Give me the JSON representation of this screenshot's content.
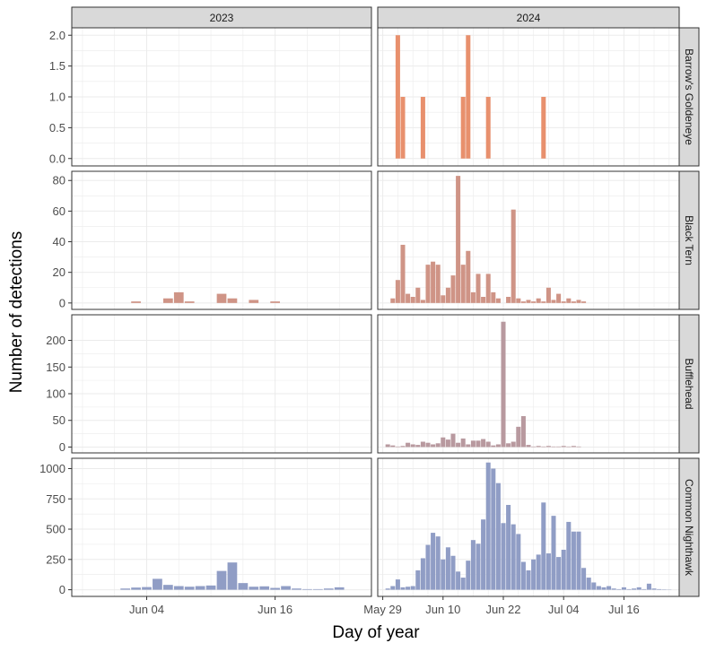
{
  "chart_data": {
    "type": "bar",
    "layout": "facet grid: rows = species, columns = year",
    "xlabel": "Day of year",
    "ylabel": "Number of detections",
    "grid": true,
    "legend": "none",
    "columns": [
      "2023",
      "2024"
    ],
    "rows": [
      "Barrow's Goldeneye",
      "Black Tern",
      "Bufflehead",
      "Common Nighthawk"
    ],
    "colors": {
      "Barrow's Goldeneye": "#E8906D",
      "Black Tern": "#CF9486",
      "Bufflehead": "#B8999F",
      "Common Nighthawk": "#909DC5",
      "strip_fill": "#D9D9D9",
      "grid": "#EBEBEB"
    },
    "panels": [
      {
        "year": "2023",
        "x_range": [
          "2023-05-28",
          "2023-06-25"
        ],
        "x_ticks": [
          {
            "date": "2023-06-04",
            "label": "Jun 04"
          },
          {
            "date": "2023-06-16",
            "label": "Jun 16"
          }
        ]
      },
      {
        "year": "2024",
        "x_range": [
          "2024-05-28",
          "2024-07-27"
        ],
        "x_ticks": [
          {
            "date": "2024-05-29",
            "label": "May 29"
          },
          {
            "date": "2024-06-10",
            "label": "Jun 10"
          },
          {
            "date": "2024-06-22",
            "label": "Jun 22"
          },
          {
            "date": "2024-07-04",
            "label": "Jul 04"
          },
          {
            "date": "2024-07-16",
            "label": "Jul 16"
          }
        ]
      }
    ],
    "y_axes": [
      {
        "species": "Barrow's Goldeneye",
        "ylim": [
          -0.12,
          2.12
        ],
        "ticks": [
          0.0,
          0.5,
          1.0,
          1.5,
          2.0
        ],
        "tick_labels": [
          "0.0",
          "0.5",
          "1.0",
          "1.5",
          "2.0"
        ]
      },
      {
        "species": "Black Tern",
        "ylim": [
          -4.2,
          86
        ],
        "ticks": [
          0,
          20,
          40,
          60,
          80
        ],
        "tick_labels": [
          "0",
          "20",
          "40",
          "60",
          "80"
        ]
      },
      {
        "species": "Bufflehead",
        "ylim": [
          -11,
          248
        ],
        "ticks": [
          0,
          50,
          100,
          150,
          200
        ],
        "tick_labels": [
          "0",
          "50",
          "100",
          "150",
          "200"
        ]
      },
      {
        "species": "Common Nighthawk",
        "ylim": [
          -55,
          1085
        ],
        "ticks": [
          0,
          250,
          500,
          750,
          1000
        ],
        "tick_labels": [
          "0",
          "250",
          "500",
          "750",
          "1000"
        ]
      }
    ],
    "series": [
      {
        "species": "Barrow's Goldeneye",
        "year": "2023",
        "dates": [],
        "values": []
      },
      {
        "species": "Barrow's Goldeneye",
        "year": "2024",
        "dates": [
          "2024-06-01",
          "2024-06-02",
          "2024-06-06",
          "2024-06-14",
          "2024-06-15",
          "2024-06-19",
          "2024-06-30"
        ],
        "values": [
          2,
          1,
          1,
          1,
          2,
          1,
          1
        ]
      },
      {
        "species": "Black Tern",
        "year": "2023",
        "dates": [
          "2023-06-03",
          "2023-06-06",
          "2023-06-07",
          "2023-06-08",
          "2023-06-11",
          "2023-06-12",
          "2023-06-14",
          "2023-06-16"
        ],
        "values": [
          1,
          3,
          7,
          1,
          6,
          3,
          2,
          1
        ]
      },
      {
        "species": "Black Tern",
        "year": "2024",
        "dates": [
          "2024-05-31",
          "2024-06-01",
          "2024-06-02",
          "2024-06-03",
          "2024-06-04",
          "2024-06-05",
          "2024-06-06",
          "2024-06-07",
          "2024-06-08",
          "2024-06-09",
          "2024-06-10",
          "2024-06-11",
          "2024-06-12",
          "2024-06-13",
          "2024-06-14",
          "2024-06-15",
          "2024-06-16",
          "2024-06-17",
          "2024-06-18",
          "2024-06-19",
          "2024-06-20",
          "2024-06-21",
          "2024-06-23",
          "2024-06-24",
          "2024-06-25",
          "2024-06-26",
          "2024-06-27",
          "2024-06-28",
          "2024-06-29",
          "2024-06-30",
          "2024-07-01",
          "2024-07-02",
          "2024-07-03",
          "2024-07-04",
          "2024-07-05",
          "2024-07-06",
          "2024-07-07",
          "2024-07-08"
        ],
        "values": [
          3,
          15,
          38,
          6,
          4,
          10,
          2,
          25,
          27,
          25,
          5,
          10,
          18,
          83,
          25,
          34,
          7,
          19,
          4,
          19,
          7,
          3,
          4,
          61,
          3,
          1,
          2,
          1,
          3,
          1,
          10,
          2,
          6,
          1,
          3,
          1,
          2,
          1
        ]
      },
      {
        "species": "Bufflehead",
        "year": "2023",
        "dates": [],
        "values": []
      },
      {
        "species": "Bufflehead",
        "year": "2024",
        "dates": [
          "2024-05-30",
          "2024-05-31",
          "2024-06-01",
          "2024-06-02",
          "2024-06-03",
          "2024-06-04",
          "2024-06-05",
          "2024-06-06",
          "2024-06-07",
          "2024-06-08",
          "2024-06-09",
          "2024-06-10",
          "2024-06-11",
          "2024-06-12",
          "2024-06-13",
          "2024-06-14",
          "2024-06-15",
          "2024-06-16",
          "2024-06-17",
          "2024-06-18",
          "2024-06-19",
          "2024-06-20",
          "2024-06-21",
          "2024-06-22",
          "2024-06-23",
          "2024-06-24",
          "2024-06-25",
          "2024-06-26",
          "2024-06-27",
          "2024-06-28",
          "2024-06-29",
          "2024-06-30",
          "2024-07-01",
          "2024-07-02",
          "2024-07-03",
          "2024-07-04",
          "2024-07-05",
          "2024-07-06",
          "2024-07-07"
        ],
        "values": [
          5,
          3,
          1,
          2,
          8,
          5,
          4,
          10,
          8,
          5,
          7,
          18,
          14,
          25,
          8,
          16,
          5,
          12,
          12,
          15,
          10,
          3,
          5,
          235,
          7,
          10,
          38,
          58,
          4,
          1,
          2,
          1,
          2,
          1,
          1,
          2,
          1,
          2,
          1
        ]
      },
      {
        "species": "Common Nighthawk",
        "year": "2023",
        "dates": [
          "2023-06-02",
          "2023-06-03",
          "2023-06-04",
          "2023-06-05",
          "2023-06-06",
          "2023-06-07",
          "2023-06-08",
          "2023-06-09",
          "2023-06-10",
          "2023-06-11",
          "2023-06-12",
          "2023-06-13",
          "2023-06-14",
          "2023-06-15",
          "2023-06-16",
          "2023-06-17",
          "2023-06-18",
          "2023-06-19",
          "2023-06-20",
          "2023-06-21",
          "2023-06-22"
        ],
        "values": [
          10,
          18,
          22,
          90,
          40,
          30,
          25,
          30,
          35,
          155,
          225,
          55,
          25,
          28,
          15,
          30,
          10,
          5,
          5,
          10,
          20
        ]
      },
      {
        "species": "Common Nighthawk",
        "year": "2024",
        "dates": [
          "2024-05-30",
          "2024-05-31",
          "2024-06-01",
          "2024-06-02",
          "2024-06-03",
          "2024-06-04",
          "2024-06-05",
          "2024-06-06",
          "2024-06-07",
          "2024-06-08",
          "2024-06-09",
          "2024-06-10",
          "2024-06-11",
          "2024-06-12",
          "2024-06-13",
          "2024-06-14",
          "2024-06-15",
          "2024-06-16",
          "2024-06-17",
          "2024-06-18",
          "2024-06-19",
          "2024-06-20",
          "2024-06-21",
          "2024-06-22",
          "2024-06-23",
          "2024-06-24",
          "2024-06-25",
          "2024-06-26",
          "2024-06-27",
          "2024-06-28",
          "2024-06-29",
          "2024-06-30",
          "2024-07-01",
          "2024-07-02",
          "2024-07-03",
          "2024-07-04",
          "2024-07-05",
          "2024-07-06",
          "2024-07-07",
          "2024-07-08",
          "2024-07-09",
          "2024-07-10",
          "2024-07-11",
          "2024-07-12",
          "2024-07-13",
          "2024-07-14",
          "2024-07-15",
          "2024-07-16",
          "2024-07-17",
          "2024-07-18",
          "2024-07-19",
          "2024-07-20",
          "2024-07-21",
          "2024-07-22",
          "2024-07-23",
          "2024-07-24",
          "2024-07-25"
        ],
        "values": [
          10,
          30,
          85,
          20,
          25,
          30,
          160,
          260,
          370,
          470,
          440,
          250,
          350,
          280,
          150,
          100,
          240,
          410,
          380,
          580,
          1050,
          1000,
          880,
          550,
          700,
          540,
          460,
          230,
          160,
          250,
          290,
          720,
          300,
          610,
          270,
          330,
          560,
          480,
          480,
          180,
          100,
          60,
          30,
          20,
          30,
          10,
          5,
          20,
          5,
          10,
          20,
          5,
          50,
          10,
          5,
          3,
          2
        ]
      }
    ]
  }
}
